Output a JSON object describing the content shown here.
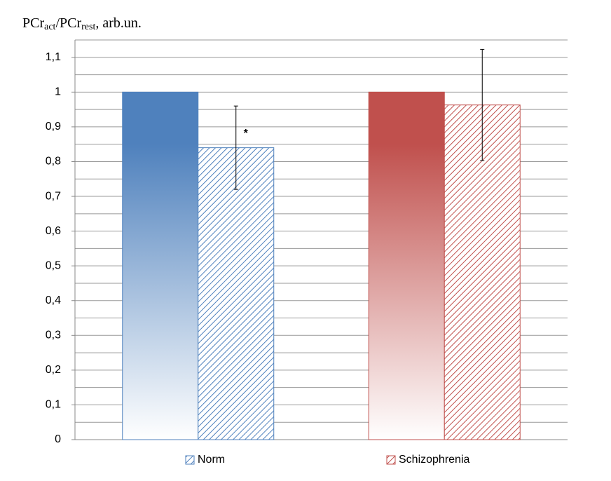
{
  "chart_data": {
    "type": "bar",
    "ylabel_parts": [
      "PCr",
      "act",
      "/PCr",
      "rest",
      ", arb.un."
    ],
    "series": [
      {
        "name": "Norm",
        "color": "#4f81bd",
        "values": [
          1,
          0.84
        ],
        "errors": [
          null,
          0.12
        ]
      },
      {
        "name": "Schizophrenia",
        "color": "#c0504d",
        "values": [
          1,
          0.963
        ],
        "errors": [
          null,
          0.16
        ]
      }
    ],
    "annotations": [
      {
        "text": "*",
        "series": 0,
        "index": 1
      }
    ],
    "ylim": [
      0,
      1.15
    ],
    "yticks": [
      0,
      {
        "value": 0.1,
        "label": "0,1"
      },
      {
        "value": 0.2,
        "label": "0,2"
      },
      {
        "value": 0.3,
        "label": "0,3"
      },
      {
        "value": 0.4,
        "label": "0,4"
      },
      {
        "value": 0.5,
        "label": "0,5"
      },
      {
        "value": 0.6,
        "label": "0,6"
      },
      {
        "value": 0.7,
        "label": "0,7"
      },
      {
        "value": 0.8,
        "label": "0,8"
      },
      {
        "value": 0.9,
        "label": "0,9"
      },
      1,
      {
        "value": 1.1,
        "label": "1,1"
      }
    ],
    "minor_grid": [
      0.05,
      0.15,
      0.25,
      0.35,
      0.45,
      0.55,
      0.65,
      0.75,
      0.85,
      0.95,
      1.05,
      1.15
    ],
    "grid": true,
    "legend": "bottom"
  }
}
